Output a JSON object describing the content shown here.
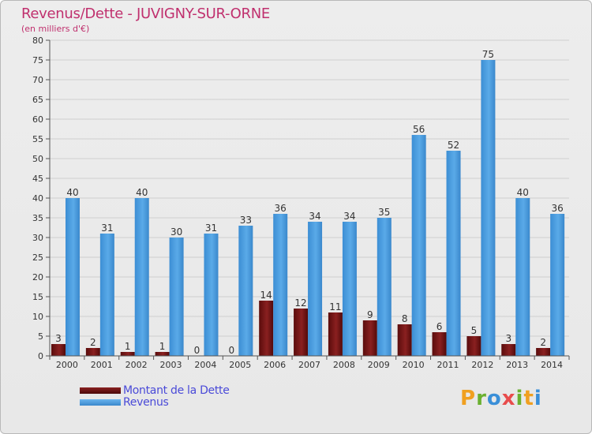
{
  "header": {
    "title": "Revenus/Dette - JUVIGNY-SUR-ORNE",
    "subtitle": "(en milliers d'€)"
  },
  "legend": {
    "items": [
      {
        "label": "Montant de la Dette",
        "color": "#6b1010"
      },
      {
        "label": "Revenus",
        "color": "#4b9fe0"
      }
    ]
  },
  "logo": {
    "letters": [
      "P",
      "r",
      "o",
      "x",
      "i",
      "t",
      "i"
    ],
    "colors": [
      "#f0a020",
      "#6ab030",
      "#3a8fd8",
      "#e84c4c",
      "#6ab030",
      "#f0a020",
      "#3a8fd8"
    ]
  },
  "chart_data": {
    "type": "bar",
    "title": "Revenus/Dette - JUVIGNY-SUR-ORNE",
    "ylabel": "(en milliers d'€)",
    "xlabel": "",
    "ylim": [
      0,
      80
    ],
    "ytick_step": 5,
    "grid": true,
    "categories": [
      "2000",
      "2001",
      "2002",
      "2003",
      "2004",
      "2005",
      "2006",
      "2007",
      "2008",
      "2009",
      "2010",
      "2011",
      "2012",
      "2013",
      "2014"
    ],
    "series": [
      {
        "name": "Montant de la Dette",
        "color": "#6b1010",
        "values": [
          3,
          2,
          1,
          1,
          0,
          0,
          14,
          12,
          11,
          9,
          8,
          6,
          5,
          3,
          2
        ]
      },
      {
        "name": "Revenus",
        "color": "#4b9fe0",
        "values": [
          40,
          31,
          40,
          30,
          31,
          33,
          36,
          34,
          34,
          35,
          56,
          52,
          75,
          40,
          36
        ]
      }
    ]
  }
}
